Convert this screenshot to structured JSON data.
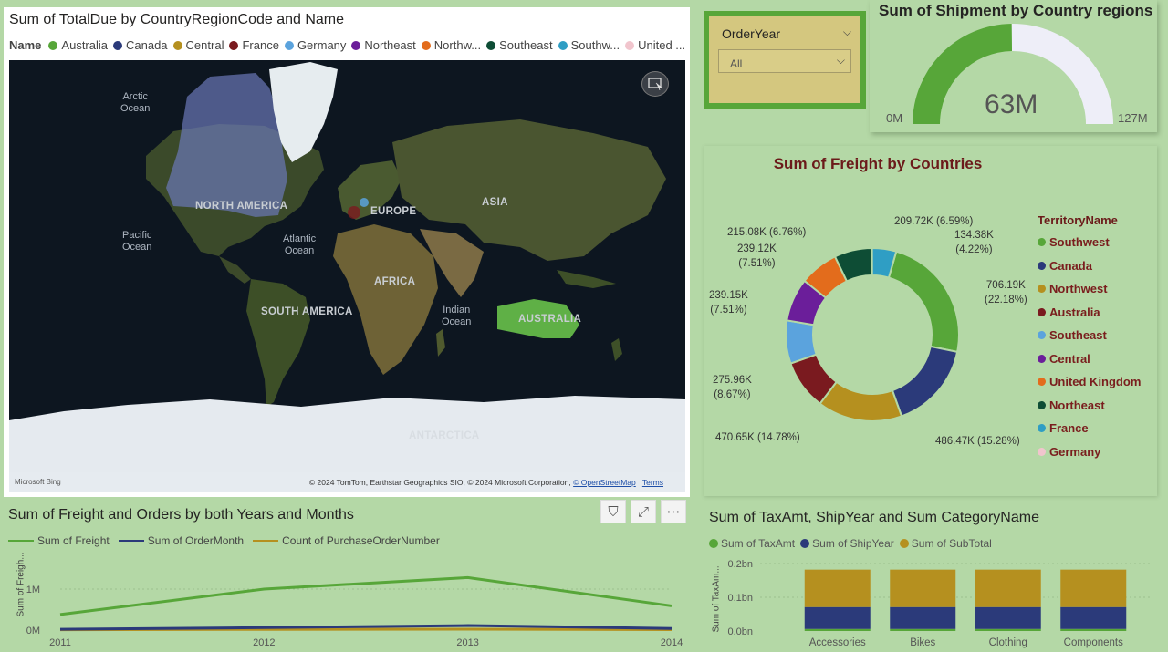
{
  "map": {
    "title": "Sum of TotalDue by CountryRegionCode and Name",
    "legend_title": "Name",
    "legend_items": [
      {
        "label": "Australia",
        "color": "#57a639"
      },
      {
        "label": "Canada",
        "color": "#2b3a7a"
      },
      {
        "label": "Central",
        "color": "#b5901f"
      },
      {
        "label": "France",
        "color": "#7a1a1f"
      },
      {
        "label": "Germany",
        "color": "#5ba3dd"
      },
      {
        "label": "Northeast",
        "color": "#6b1e9a"
      },
      {
        "label": "Northw...",
        "color": "#e36c1c"
      },
      {
        "label": "Southeast",
        "color": "#0e4d35"
      },
      {
        "label": "Southw...",
        "color": "#2f9ec4"
      },
      {
        "label": "United ...",
        "color": "#f1c5cd"
      }
    ],
    "ocean_labels": [
      "Arctic\nOcean",
      "Pacific\nOcean",
      "Atlantic\nOcean",
      "Indian\nOcean"
    ],
    "region_labels": [
      "NORTH AMERICA",
      "EUROPE",
      "ASIA",
      "AFRICA",
      "SOUTH AMERICA",
      "AUSTRALIA",
      "ANTARCTICA"
    ],
    "bing_logo": "Microsoft Bing",
    "attribution": "© 2024 TomTom, Earthstar Geographics SIO, © 2024 Microsoft Corporation,",
    "osm_link": "© OpenStreetMap",
    "terms_link": "Terms"
  },
  "slicer": {
    "title": "OrderYear",
    "value": "All"
  },
  "gauge": {
    "title": "Sum of Shipment by Country regions",
    "value_label": "63M",
    "min_label": "0M",
    "max_label": "127M",
    "value": 63,
    "min": 0,
    "max": 127,
    "fill_color": "#57a639",
    "track_color": "#eeeef8"
  },
  "donut": {
    "title": "Sum of Freight by Countries",
    "legend_title": "TerritoryName",
    "legend_items": [
      {
        "label": "Southwest",
        "color": "#57a639"
      },
      {
        "label": "Canada",
        "color": "#2b3a7a"
      },
      {
        "label": "Northwest",
        "color": "#b5901f"
      },
      {
        "label": "Australia",
        "color": "#7a1a1f"
      },
      {
        "label": "Southeast",
        "color": "#5ba3dd"
      },
      {
        "label": "Central",
        "color": "#6b1e9a"
      },
      {
        "label": "United Kingdom",
        "color": "#e36c1c"
      },
      {
        "label": "Northeast",
        "color": "#0e4d35"
      },
      {
        "label": "France",
        "color": "#2f9ec4"
      },
      {
        "label": "Germany",
        "color": "#f1c5cd"
      }
    ],
    "slice_labels": [
      {
        "line1": "706.19K",
        "line2": "(22.18%)"
      },
      {
        "line1": "486.47K (15.28%)",
        "line2": ""
      },
      {
        "line1": "470.65K (14.78%)",
        "line2": ""
      },
      {
        "line1": "275.96K",
        "line2": "(8.67%)"
      },
      {
        "line1": "239.15K",
        "line2": "(7.51%)"
      },
      {
        "line1": "239.12K",
        "line2": "(7.51%)"
      },
      {
        "line1": "215.08K (6.76%)",
        "line2": ""
      },
      {
        "line1": "209.72K (6.59%)",
        "line2": ""
      },
      {
        "line1": "134.38K",
        "line2": "(4.22%)"
      }
    ]
  },
  "line_chart": {
    "title": "Sum of Freight and Orders by both Years and Months",
    "ylabel": "Sum of Freigh...",
    "buttons": {
      "filter": "⛉",
      "focus": "⤢",
      "more": "⋯"
    }
  },
  "bar_chart": {
    "title": "Sum of TaxAmt, ShipYear and Sum CategoryName",
    "ylabel": "Sum of TaxAm..."
  },
  "chart_data": [
    {
      "type": "pie",
      "title": "Sum of Freight by Countries",
      "categories": [
        "Southwest",
        "Canada",
        "Northwest",
        "Australia",
        "Southeast",
        "Central",
        "United Kingdom",
        "Northeast",
        "France",
        "Germany"
      ],
      "values": [
        706190,
        486470,
        470650,
        275960,
        239150,
        239120,
        215080,
        209720,
        134380,
        0
      ],
      "colors": [
        "#57a639",
        "#2b3a7a",
        "#b5901f",
        "#7a1a1f",
        "#5ba3dd",
        "#6b1e9a",
        "#e36c1c",
        "#0e4d35",
        "#2f9ec4",
        "#f1c5cd"
      ],
      "legend": "right"
    },
    {
      "type": "line",
      "title": "Sum of Freight and Orders by both Years and Months",
      "x": [
        "2011",
        "2012",
        "2013",
        "2014"
      ],
      "series": [
        {
          "name": "Sum of Freight",
          "values": [
            380000,
            1000000,
            1280000,
            590000
          ],
          "color": "#57a639"
        },
        {
          "name": "Sum of OrderMonth",
          "values": [
            20000,
            60000,
            110000,
            40000
          ],
          "color": "#2b3a7a"
        },
        {
          "name": "Count of PurchaseOrderNumber",
          "values": [
            8000,
            18000,
            22000,
            12000
          ],
          "color": "#b5901f"
        }
      ],
      "ytick_labels": [
        "0M",
        "1M"
      ],
      "ylim": [
        0,
        1400000
      ],
      "legend": "top-left"
    },
    {
      "type": "bar",
      "title": "Sum of TaxAmt, ShipYear and Sum CategoryName",
      "categories": [
        "Accessories",
        "Bikes",
        "Clothing",
        "Components"
      ],
      "series": [
        {
          "name": "Sum of TaxAmt",
          "values": [
            0.006,
            0.006,
            0.006,
            0.006
          ],
          "color": "#57a639"
        },
        {
          "name": "Sum of ShipYear",
          "values": [
            0.065,
            0.065,
            0.065,
            0.065
          ],
          "color": "#2b3a7a"
        },
        {
          "name": "Sum of SubTotal",
          "values": [
            0.111,
            0.111,
            0.111,
            0.111
          ],
          "color": "#b5901f"
        }
      ],
      "ytick_labels": [
        "0.0bn",
        "0.1bn",
        "0.2bn"
      ],
      "ylim": [
        0,
        0.2
      ],
      "stacked": true,
      "legend": "top-left"
    }
  ]
}
